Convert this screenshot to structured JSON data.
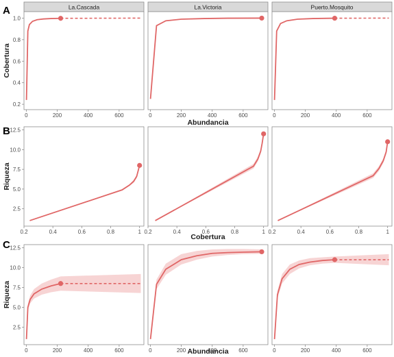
{
  "colors": {
    "line": "#e06666",
    "ribbon": "#f6cfcf",
    "strip_bg": "#d9d9d9",
    "panel_border": "#8c8c8c",
    "axis_text": "#4d4d4d"
  },
  "chart_data": [
    {
      "row_label": "A",
      "type": "line",
      "facets": [
        "La.Cascada",
        "La.Victoria",
        "Puerto.Mosquito"
      ],
      "xlabel": "Abundancia",
      "ylabel": "Cobertura",
      "xlim": [
        -15,
        760
      ],
      "ylim": [
        0.15,
        1.06
      ],
      "x_ticks": [
        0,
        200,
        400,
        600
      ],
      "y_ticks": [
        0.2,
        0.4,
        0.6,
        0.8,
        1.0
      ],
      "y_tick_labels": [
        "0.2",
        "0.4",
        "0.6",
        "0.8",
        "1.0"
      ],
      "series": [
        {
          "facet": "La.Cascada",
          "x": [
            1,
            10,
            20,
            40,
            70,
            110,
            160,
            222
          ],
          "y": [
            0.24,
            0.88,
            0.94,
            0.97,
            0.985,
            0.992,
            0.996,
            0.998
          ],
          "lower": [
            0.24,
            0.88,
            0.94,
            0.97,
            0.985,
            0.992,
            0.996,
            0.998
          ],
          "upper": [
            0.24,
            0.88,
            0.94,
            0.97,
            0.985,
            0.992,
            0.996,
            0.998
          ],
          "observed": [
            222,
            0.998
          ],
          "extrap_x": [
            222,
            740
          ],
          "extrap_y": [
            0.998,
            1.0
          ]
        },
        {
          "facet": "La.Victoria",
          "x": [
            1,
            40,
            100,
            200,
            350,
            500,
            720
          ],
          "y": [
            0.25,
            0.93,
            0.975,
            0.99,
            0.996,
            0.999,
            1.0
          ],
          "lower": [
            0.25,
            0.93,
            0.975,
            0.99,
            0.996,
            0.999,
            1.0
          ],
          "upper": [
            0.25,
            0.93,
            0.975,
            0.99,
            0.996,
            0.999,
            1.0
          ],
          "observed": [
            720,
            1.0
          ],
          "extrap_x": [],
          "extrap_y": []
        },
        {
          "facet": "Puerto.Mosquito",
          "x": [
            1,
            15,
            40,
            80,
            150,
            250,
            390
          ],
          "y": [
            0.24,
            0.88,
            0.95,
            0.975,
            0.99,
            0.996,
            0.999
          ],
          "lower": [
            0.24,
            0.88,
            0.95,
            0.975,
            0.99,
            0.996,
            0.999
          ],
          "upper": [
            0.24,
            0.88,
            0.95,
            0.975,
            0.99,
            0.996,
            0.999
          ],
          "observed": [
            390,
            0.999
          ],
          "extrap_x": [
            390,
            740
          ],
          "extrap_y": [
            0.999,
            1.0
          ]
        }
      ]
    },
    {
      "row_label": "B",
      "type": "line",
      "facets": [
        "La.Cascada",
        "La.Victoria",
        "Puerto.Mosquito"
      ],
      "xlabel": "Cobertura",
      "ylabel": "Riqueza",
      "xlim": [
        0.2,
        1.03
      ],
      "ylim": [
        0.3,
        12.9
      ],
      "x_ticks": [
        0.2,
        0.4,
        0.6,
        0.8,
        1.0
      ],
      "y_ticks": [
        2.5,
        5.0,
        7.5,
        10.0,
        12.5
      ],
      "y_tick_labels": [
        "2.5",
        "5.0",
        "7.5",
        "10.0",
        "12.5"
      ],
      "series": [
        {
          "facet": "La.Cascada",
          "x": [
            0.24,
            0.88,
            0.93,
            0.96,
            0.98,
            1.0
          ],
          "y": [
            1.0,
            4.9,
            5.5,
            6.0,
            6.6,
            8.0
          ],
          "lower": [
            1.0,
            4.8,
            5.4,
            5.8,
            6.4,
            8.0
          ],
          "upper": [
            1.0,
            5.0,
            5.6,
            6.2,
            6.8,
            8.0
          ],
          "observed": [
            1.0,
            8.0
          ],
          "extrap_x": [],
          "extrap_y": []
        },
        {
          "facet": "La.Victoria",
          "x": [
            0.25,
            0.93,
            0.96,
            0.98,
            0.99,
            1.0
          ],
          "y": [
            1.0,
            7.9,
            8.8,
            9.8,
            10.8,
            12.0
          ],
          "lower": [
            1.0,
            7.6,
            8.5,
            9.5,
            10.5,
            12.0
          ],
          "upper": [
            1.0,
            8.2,
            9.1,
            10.1,
            11.1,
            12.0
          ],
          "observed": [
            1.0,
            12.0
          ],
          "extrap_x": [],
          "extrap_y": []
        },
        {
          "facet": "Puerto.Mosquito",
          "x": [
            0.24,
            0.9,
            0.94,
            0.97,
            0.99,
            1.0
          ],
          "y": [
            1.0,
            6.7,
            7.6,
            8.6,
            9.7,
            11.0
          ],
          "lower": [
            1.0,
            6.4,
            7.3,
            8.3,
            9.4,
            11.0
          ],
          "upper": [
            1.0,
            7.0,
            7.9,
            8.9,
            10.0,
            11.0
          ],
          "observed": [
            1.0,
            11.0
          ],
          "extrap_x": [],
          "extrap_y": []
        }
      ]
    },
    {
      "row_label": "C",
      "type": "line",
      "facets": [
        "La.Cascada",
        "La.Victoria",
        "Puerto.Mosquito"
      ],
      "xlabel": "Abundancia",
      "ylabel": "Riqueza",
      "xlim": [
        -15,
        760
      ],
      "ylim": [
        0.3,
        12.9
      ],
      "x_ticks": [
        0,
        200,
        400,
        600
      ],
      "y_ticks": [
        2.5,
        5.0,
        7.5,
        10.0,
        12.5
      ],
      "y_tick_labels": [
        "2.5",
        "5.0",
        "7.5",
        "10.0",
        "12.5"
      ],
      "series": [
        {
          "facet": "La.Cascada",
          "x": [
            1,
            10,
            25,
            50,
            100,
            160,
            222
          ],
          "y": [
            1.0,
            5.0,
            6.0,
            6.7,
            7.3,
            7.7,
            8.0
          ],
          "lower": [
            1.0,
            4.6,
            5.5,
            6.1,
            6.6,
            6.9,
            7.1
          ],
          "upper": [
            1.0,
            5.4,
            6.5,
            7.3,
            8.0,
            8.5,
            8.9
          ],
          "observed": [
            222,
            8.0
          ],
          "extrap_x": [
            222,
            740
          ],
          "extrap_y": [
            8.0,
            8.0
          ],
          "extrap_lower": [
            7.1,
            6.8
          ],
          "extrap_upper": [
            8.9,
            9.2
          ]
        },
        {
          "facet": "La.Victoria",
          "x": [
            1,
            40,
            100,
            200,
            300,
            400,
            500,
            600,
            720
          ],
          "y": [
            1.0,
            7.9,
            9.8,
            11.0,
            11.5,
            11.8,
            11.9,
            11.95,
            12.0
          ],
          "lower": [
            1.0,
            7.3,
            9.1,
            10.4,
            11.0,
            11.4,
            11.6,
            11.7,
            11.75
          ],
          "upper": [
            1.0,
            8.5,
            10.5,
            11.7,
            12.1,
            12.3,
            12.35,
            12.35,
            12.3
          ],
          "observed": [
            720,
            12.0
          ],
          "extrap_x": [],
          "extrap_y": []
        },
        {
          "facet": "Puerto.Mosquito",
          "x": [
            1,
            20,
            50,
            100,
            160,
            230,
            310,
            390
          ],
          "y": [
            1.0,
            6.6,
            8.6,
            9.8,
            10.4,
            10.7,
            10.9,
            11.0
          ],
          "lower": [
            1.0,
            6.1,
            8.0,
            9.2,
            9.9,
            10.3,
            10.5,
            10.6
          ],
          "upper": [
            1.0,
            7.1,
            9.2,
            10.4,
            10.9,
            11.2,
            11.3,
            11.4
          ],
          "observed": [
            390,
            11.0
          ],
          "extrap_x": [
            390,
            740
          ],
          "extrap_y": [
            11.0,
            11.0
          ],
          "extrap_lower": [
            10.6,
            10.3
          ],
          "extrap_upper": [
            11.4,
            11.7
          ]
        }
      ]
    }
  ]
}
